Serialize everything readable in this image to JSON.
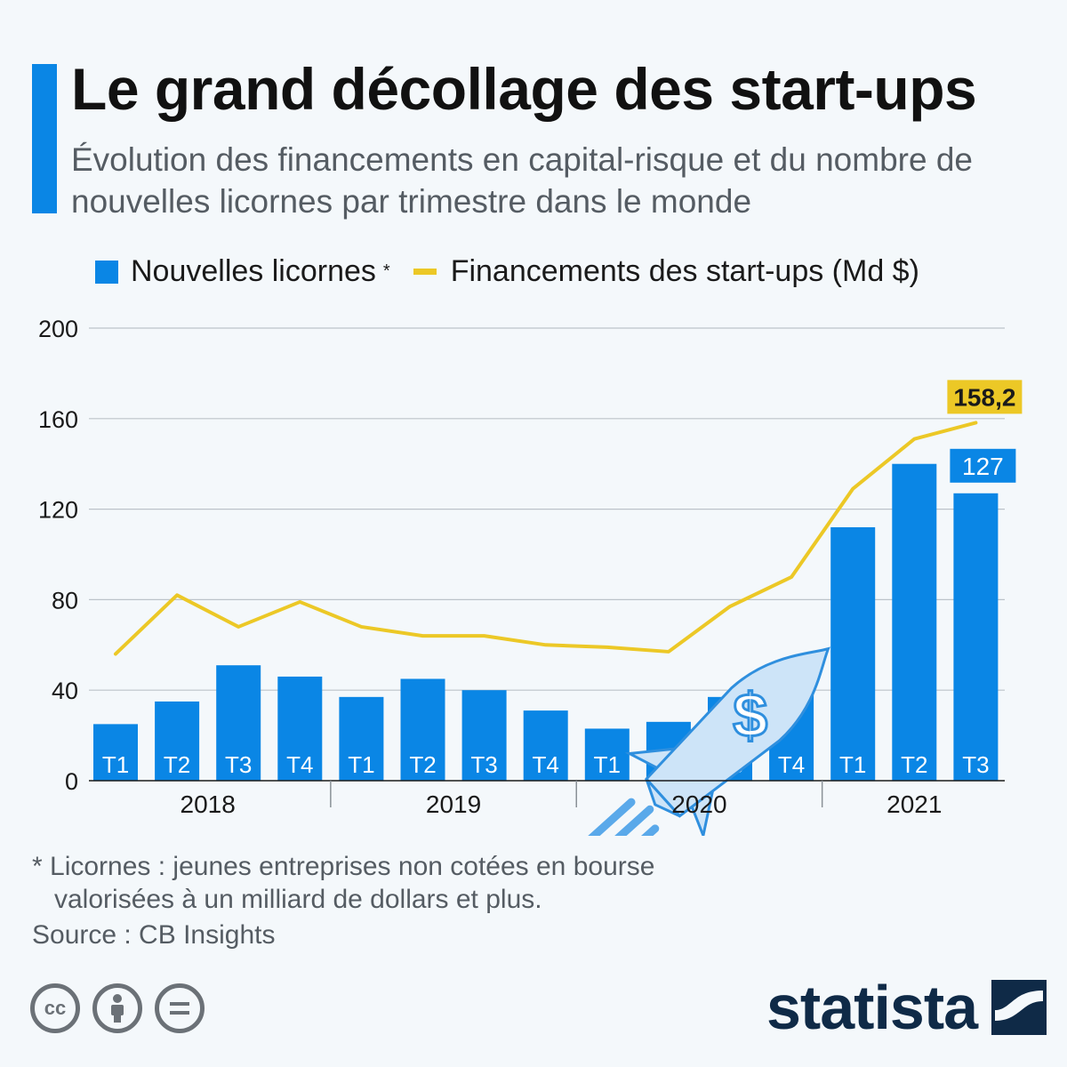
{
  "header": {
    "title": "Le grand décollage des start-ups",
    "subtitle": "Évolution des financements en capital-risque et du nombre de nouvelles licornes par trimestre dans le monde"
  },
  "legend": {
    "bars_label": "Nouvelles licornes",
    "bars_marker": "*",
    "line_label": "Financements des start-ups (Md $)"
  },
  "chart_data": {
    "type": "bar",
    "years": [
      "2018",
      "2019",
      "2020",
      "2021"
    ],
    "categories": [
      "T1",
      "T2",
      "T3",
      "T4",
      "T1",
      "T2",
      "T3",
      "T4",
      "T1",
      "T2",
      "T3",
      "T4",
      "T1",
      "T2",
      "T3"
    ],
    "category_years": [
      "2018",
      "2018",
      "2018",
      "2018",
      "2019",
      "2019",
      "2019",
      "2019",
      "2020",
      "2020",
      "2020",
      "2020",
      "2021",
      "2021",
      "2021"
    ],
    "series": [
      {
        "name": "Nouvelles licornes",
        "type": "bar",
        "values": [
          25,
          35,
          51,
          46,
          37,
          45,
          40,
          31,
          23,
          26,
          37,
          47,
          112,
          140,
          127
        ]
      },
      {
        "name": "Financements des start-ups (Md $)",
        "type": "line",
        "values": [
          56,
          82,
          68,
          79,
          68,
          64,
          64,
          60,
          59,
          57,
          77,
          90,
          129,
          151,
          158.2
        ]
      }
    ],
    "yticks": [
      "0",
      "40",
      "80",
      "120",
      "160",
      "200"
    ],
    "ylim": [
      0,
      200
    ],
    "grid": true,
    "annotations": [
      {
        "series": "Financements des start-ups (Md $)",
        "index": 14,
        "text": "158,2"
      },
      {
        "series": "Nouvelles licornes",
        "index": 14,
        "text": "127"
      }
    ],
    "colors": {
      "bars": "#0a86e5",
      "line": "#ecc826",
      "bar_label_text": "#ffffff",
      "annotation_line_bg": "#ecc826",
      "annotation_bar_bg": "#0a86e5"
    }
  },
  "footnote": {
    "line1": "* Licornes : jeunes entreprises non cotées en bourse",
    "line2": "valorisées à un milliard de dollars et plus."
  },
  "source": "Source : CB Insights",
  "license_icons": [
    "cc-icon",
    "attribution-icon",
    "no-derivatives-icon"
  ],
  "brand": {
    "name": "statista"
  }
}
